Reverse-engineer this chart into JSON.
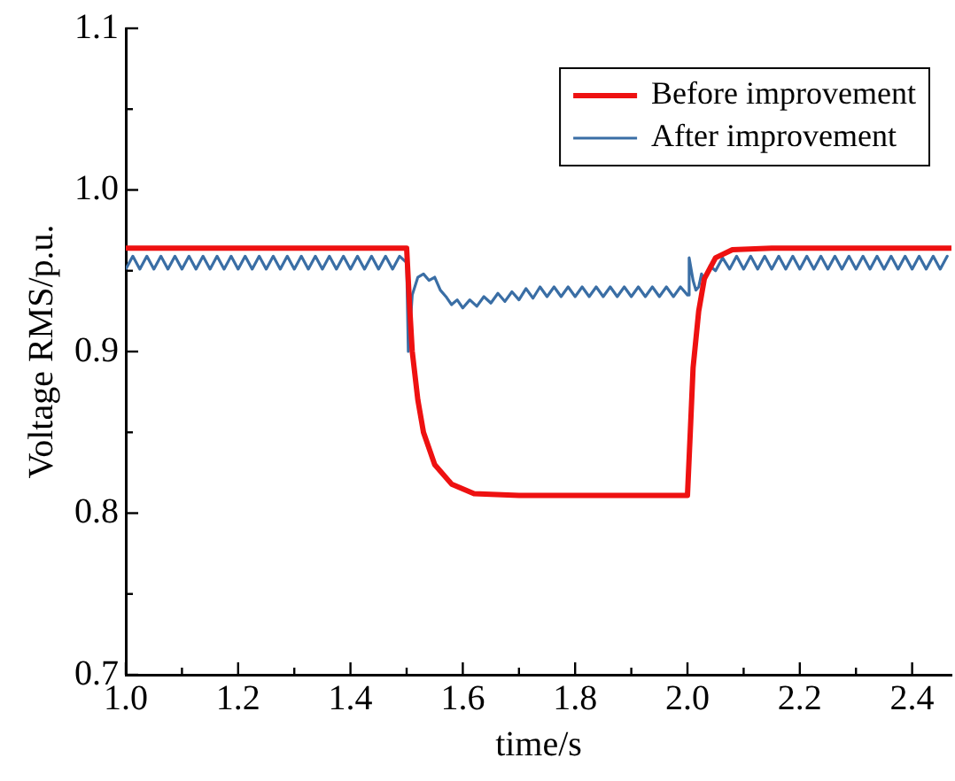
{
  "chart_data": {
    "type": "line",
    "xlabel": "time/s",
    "ylabel": "Voltage RMS/p.u.",
    "xlim": [
      1.0,
      2.47
    ],
    "ylim": [
      0.7,
      1.1
    ],
    "xticks": [
      {
        "value": 1.0,
        "label": "1.0"
      },
      {
        "value": 1.1,
        "label": null
      },
      {
        "value": 1.2,
        "label": "1.2"
      },
      {
        "value": 1.3,
        "label": null
      },
      {
        "value": 1.4,
        "label": "1.4"
      },
      {
        "value": 1.5,
        "label": null
      },
      {
        "value": 1.6,
        "label": "1.6"
      },
      {
        "value": 1.7,
        "label": null
      },
      {
        "value": 1.8,
        "label": "1.8"
      },
      {
        "value": 1.9,
        "label": null
      },
      {
        "value": 2.0,
        "label": "2.0"
      },
      {
        "value": 2.1,
        "label": null
      },
      {
        "value": 2.2,
        "label": "2.2"
      },
      {
        "value": 2.3,
        "label": null
      },
      {
        "value": 2.4,
        "label": "2.4"
      }
    ],
    "yticks": [
      {
        "value": 0.7,
        "label": "0.7"
      },
      {
        "value": 0.75,
        "label": null
      },
      {
        "value": 0.8,
        "label": "0.8"
      },
      {
        "value": 0.85,
        "label": null
      },
      {
        "value": 0.9,
        "label": "0.9"
      },
      {
        "value": 0.95,
        "label": null
      },
      {
        "value": 1.0,
        "label": "1.0"
      },
      {
        "value": 1.05,
        "label": null
      },
      {
        "value": 1.1,
        "label": "1.1"
      }
    ],
    "grid": false,
    "legend": "top right",
    "marker": "none",
    "line_style": "solid",
    "series": [
      {
        "name": "Before improvement",
        "color": "#ee1111",
        "x": [
          1.0,
          1.5,
          1.505,
          1.51,
          1.52,
          1.53,
          1.55,
          1.58,
          1.62,
          1.7,
          2.0,
          2.005,
          2.01,
          2.02,
          2.03,
          2.05,
          2.08,
          2.15,
          2.47
        ],
        "values": [
          0.964,
          0.964,
          0.93,
          0.9,
          0.87,
          0.85,
          0.83,
          0.818,
          0.812,
          0.811,
          0.811,
          0.85,
          0.89,
          0.925,
          0.945,
          0.958,
          0.963,
          0.964,
          0.964
        ]
      },
      {
        "name": "After improvement",
        "color": "#3a6ea5",
        "x": [
          1.0,
          1.0125,
          1.025,
          1.0375,
          1.05,
          1.0625,
          1.075,
          1.0875,
          1.1,
          1.1125,
          1.125,
          1.1375,
          1.15,
          1.1625,
          1.175,
          1.1875,
          1.2,
          1.2125,
          1.225,
          1.2375,
          1.25,
          1.2625,
          1.275,
          1.2875,
          1.3,
          1.3125,
          1.325,
          1.3375,
          1.35,
          1.3625,
          1.375,
          1.3875,
          1.4,
          1.4125,
          1.425,
          1.4375,
          1.45,
          1.4625,
          1.475,
          1.4875,
          1.5,
          1.503,
          1.51,
          1.52,
          1.53,
          1.54,
          1.55,
          1.56,
          1.57,
          1.58,
          1.59,
          1.6,
          1.6125,
          1.625,
          1.6375,
          1.65,
          1.6625,
          1.675,
          1.6875,
          1.7,
          1.7125,
          1.725,
          1.7375,
          1.75,
          1.7625,
          1.775,
          1.7875,
          1.8,
          1.8125,
          1.825,
          1.8375,
          1.85,
          1.8625,
          1.875,
          1.8875,
          1.9,
          1.9125,
          1.925,
          1.9375,
          1.95,
          1.9625,
          1.975,
          1.9875,
          2.0,
          2.003,
          2.01,
          2.015,
          2.02,
          2.025,
          2.03,
          2.04,
          2.05,
          2.0625,
          2.075,
          2.0875,
          2.1,
          2.1125,
          2.125,
          2.1375,
          2.15,
          2.1625,
          2.175,
          2.1875,
          2.2,
          2.2125,
          2.225,
          2.2375,
          2.25,
          2.2625,
          2.275,
          2.2875,
          2.3,
          2.3125,
          2.325,
          2.3375,
          2.35,
          2.3625,
          2.375,
          2.3875,
          2.4,
          2.4125,
          2.425,
          2.4375,
          2.45,
          2.4625
        ],
        "values": [
          0.951,
          0.959,
          0.951,
          0.959,
          0.951,
          0.959,
          0.951,
          0.959,
          0.951,
          0.959,
          0.951,
          0.959,
          0.951,
          0.959,
          0.951,
          0.959,
          0.951,
          0.959,
          0.951,
          0.959,
          0.951,
          0.959,
          0.951,
          0.959,
          0.951,
          0.959,
          0.951,
          0.959,
          0.951,
          0.959,
          0.951,
          0.959,
          0.951,
          0.959,
          0.951,
          0.959,
          0.951,
          0.959,
          0.951,
          0.959,
          0.955,
          0.9,
          0.935,
          0.946,
          0.948,
          0.944,
          0.946,
          0.938,
          0.934,
          0.929,
          0.932,
          0.927,
          0.932,
          0.928,
          0.934,
          0.93,
          0.936,
          0.931,
          0.937,
          0.932,
          0.939,
          0.933,
          0.94,
          0.934,
          0.94,
          0.934,
          0.94,
          0.934,
          0.94,
          0.934,
          0.94,
          0.934,
          0.94,
          0.934,
          0.94,
          0.934,
          0.94,
          0.934,
          0.94,
          0.934,
          0.94,
          0.934,
          0.94,
          0.935,
          0.958,
          0.944,
          0.938,
          0.94,
          0.948,
          0.944,
          0.953,
          0.95,
          0.958,
          0.951,
          0.959,
          0.951,
          0.959,
          0.951,
          0.959,
          0.951,
          0.959,
          0.951,
          0.959,
          0.951,
          0.959,
          0.951,
          0.959,
          0.951,
          0.959,
          0.951,
          0.959,
          0.951,
          0.959,
          0.951,
          0.959,
          0.951,
          0.959,
          0.951,
          0.959,
          0.951,
          0.959,
          0.951,
          0.959,
          0.951,
          0.959
        ]
      }
    ]
  }
}
